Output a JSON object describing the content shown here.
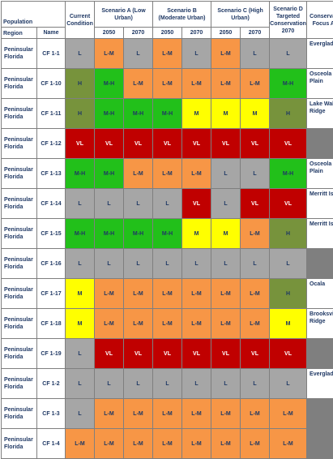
{
  "colors": {
    "L": "#a6a6a6",
    "L-M": "#f79646",
    "M": "#ffff00",
    "M-H": "#22c01a",
    "H": "#77933c",
    "VL": "#c00000",
    "empty": "#7f7f7f",
    "text": "#1f3864"
  },
  "header": {
    "population": "Population",
    "region": "Region",
    "name": "Name",
    "current": "Current Condition",
    "scenario_a": "Scenario A (Low Urban)",
    "scenario_b": "Scenario B (Moderate Urban)",
    "scenario_c": "Scenario C (High Urban)",
    "scenario_d": "Scenario D Targeted Conservation 2070",
    "focus": "Conservation Focus Area",
    "y2050_a": "2050",
    "y2070_a": "2070",
    "y2050_b": "2050",
    "y2070_b": "2070",
    "y2050_c": "2050",
    "y2070_c": "2070"
  },
  "rows": [
    {
      "region": "Peninsular Florida",
      "name": "CF 1-1",
      "values": [
        "L",
        "L-M",
        "L",
        "L-M",
        "L",
        "L-M",
        "L",
        "L"
      ],
      "focus": "Everglades"
    },
    {
      "region": "Peninsular Florida",
      "name": "CF 1-10",
      "values": [
        "H",
        "M-H",
        "L-M",
        "L-M",
        "L-M",
        "L-M",
        "L-M",
        "M-H"
      ],
      "focus": "Osceola Plain"
    },
    {
      "region": "Peninsular Florida",
      "name": "CF 1-11",
      "values": [
        "H",
        "M-H",
        "M-H",
        "M-H",
        "M",
        "M",
        "M",
        "H"
      ],
      "focus": "Lake Wales Ridge"
    },
    {
      "region": "Peninsular Florida",
      "name": "CF 1-12",
      "values": [
        "VL",
        "VL",
        "VL",
        "VL",
        "VL",
        "VL",
        "VL",
        "VL"
      ],
      "focus": ""
    },
    {
      "region": "Peninsular Florida",
      "name": "CF 1-13",
      "values": [
        "M-H",
        "M-H",
        "L-M",
        "L-M",
        "L-M",
        "L",
        "L",
        "M-H"
      ],
      "focus": "Osceola Plain"
    },
    {
      "region": "Peninsular Florida",
      "name": "CF 1-14",
      "values": [
        "L",
        "L",
        "L",
        "L",
        "VL",
        "L",
        "VL",
        "VL"
      ],
      "focus": "Merritt Island"
    },
    {
      "region": "Peninsular Florida",
      "name": "CF 1-15",
      "values": [
        "M-H",
        "M-H",
        "M-H",
        "M-H",
        "M",
        "M",
        "L-M",
        "H"
      ],
      "focus": "Merritt Island"
    },
    {
      "region": "Peninsular Florida",
      "name": "CF 1-16",
      "values": [
        "L",
        "L",
        "L",
        "L",
        "L",
        "L",
        "L",
        "L"
      ],
      "focus": ""
    },
    {
      "region": "Peninsular Florida",
      "name": "CF 1-17",
      "values": [
        "M",
        "L-M",
        "L-M",
        "L-M",
        "L-M",
        "L-M",
        "L-M",
        "H"
      ],
      "focus": "Ocala"
    },
    {
      "region": "Peninsular Florida",
      "name": "CF 1-18",
      "values": [
        "M",
        "L-M",
        "L-M",
        "L-M",
        "L-M",
        "L-M",
        "L-M",
        "M"
      ],
      "focus": "Brooksville Ridge"
    },
    {
      "region": "Peninsular Florida",
      "name": "CF 1-19",
      "values": [
        "L",
        "VL",
        "VL",
        "VL",
        "VL",
        "VL",
        "VL",
        "VL"
      ],
      "focus": ""
    },
    {
      "region": "Peninsular Florida",
      "name": "CF 1-2",
      "values": [
        "L",
        "L",
        "L",
        "L",
        "L",
        "L",
        "L",
        "L"
      ],
      "focus": "Everglades"
    },
    {
      "region": "Peninsular Florida",
      "name": "CF 1-3",
      "values": [
        "L",
        "L-M",
        "L-M",
        "L-M",
        "L-M",
        "L-M",
        "L-M",
        "L-M"
      ],
      "focus": ""
    },
    {
      "region": "Peninsular Florida",
      "name": "CF 1-4",
      "values": [
        "L-M",
        "L-M",
        "L-M",
        "L-M",
        "L-M",
        "L-M",
        "L-M",
        "L-M"
      ],
      "focus": ""
    }
  ]
}
